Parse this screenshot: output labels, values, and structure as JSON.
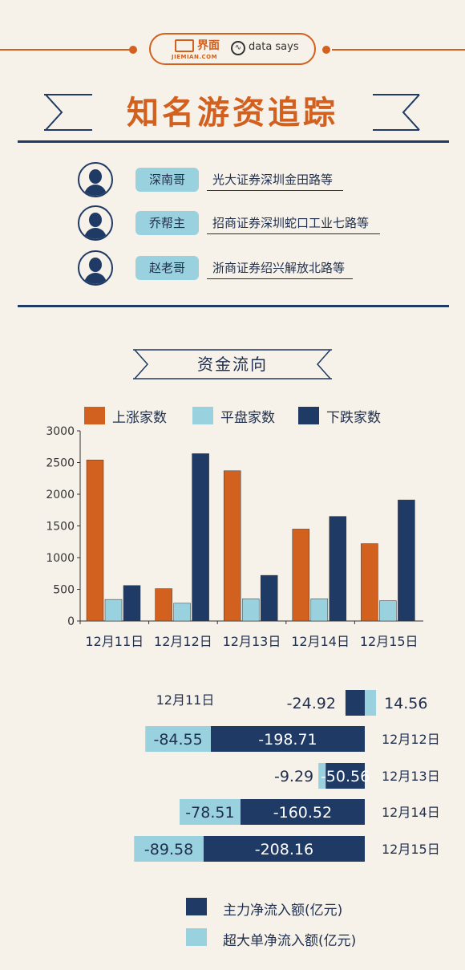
{
  "header": {
    "logo_cn": "界面",
    "logo_en": "JIEMIAN.COM",
    "data_says": "data says",
    "title": "知名游资追踪"
  },
  "traders": [
    {
      "name": "深南哥",
      "branch": "光大证券深圳金田路等"
    },
    {
      "name": "乔帮主",
      "branch": "招商证券深圳蛇口工业七路等"
    },
    {
      "name": "赵老哥",
      "branch": "浙商证券绍兴解放北路等"
    }
  ],
  "section": {
    "title": "资金流向"
  },
  "colors": {
    "orange": "#d2601e",
    "light_blue": "#9ad1de",
    "navy": "#1f3a64"
  },
  "chart_data": [
    {
      "type": "bar",
      "categories": [
        "12月11日",
        "12月12日",
        "12月13日",
        "12月14日",
        "12月15日"
      ],
      "series": [
        {
          "name": "上涨家数",
          "color": "#d2601e",
          "values": [
            2540,
            510,
            2370,
            1450,
            1220
          ]
        },
        {
          "name": "平盘家数",
          "color": "#9ad1de",
          "values": [
            340,
            280,
            350,
            350,
            320
          ]
        },
        {
          "name": "下跌家数",
          "color": "#1f3a64",
          "values": [
            560,
            2640,
            720,
            1650,
            1910
          ]
        }
      ],
      "yticks": [
        0,
        500,
        1000,
        1500,
        2000,
        2500,
        3000
      ],
      "ylim": [
        0,
        3000
      ],
      "legend": "top",
      "grid": false
    },
    {
      "type": "bar",
      "orientation": "horizontal",
      "stacked": true,
      "categories": [
        "12月11日",
        "12月12日",
        "12月13日",
        "12月14日",
        "12月15日"
      ],
      "series": [
        {
          "name": "主力净流入额(亿元)",
          "color": "#1f3a64",
          "values": [
            -24.92,
            -198.71,
            -50.56,
            -160.52,
            -208.16
          ],
          "labels": [
            "-24.92",
            "-198.71",
            "-50.56",
            "-160.52",
            "-208.16"
          ]
        },
        {
          "name": "超大单净流入额(亿元)",
          "color": "#9ad1de",
          "values": [
            14.56,
            -84.55,
            -9.29,
            -78.51,
            -89.58
          ],
          "labels": [
            "14.56",
            "-84.55",
            "-9.29",
            "-78.51",
            "-89.58"
          ]
        }
      ],
      "legend": "bottom"
    }
  ]
}
